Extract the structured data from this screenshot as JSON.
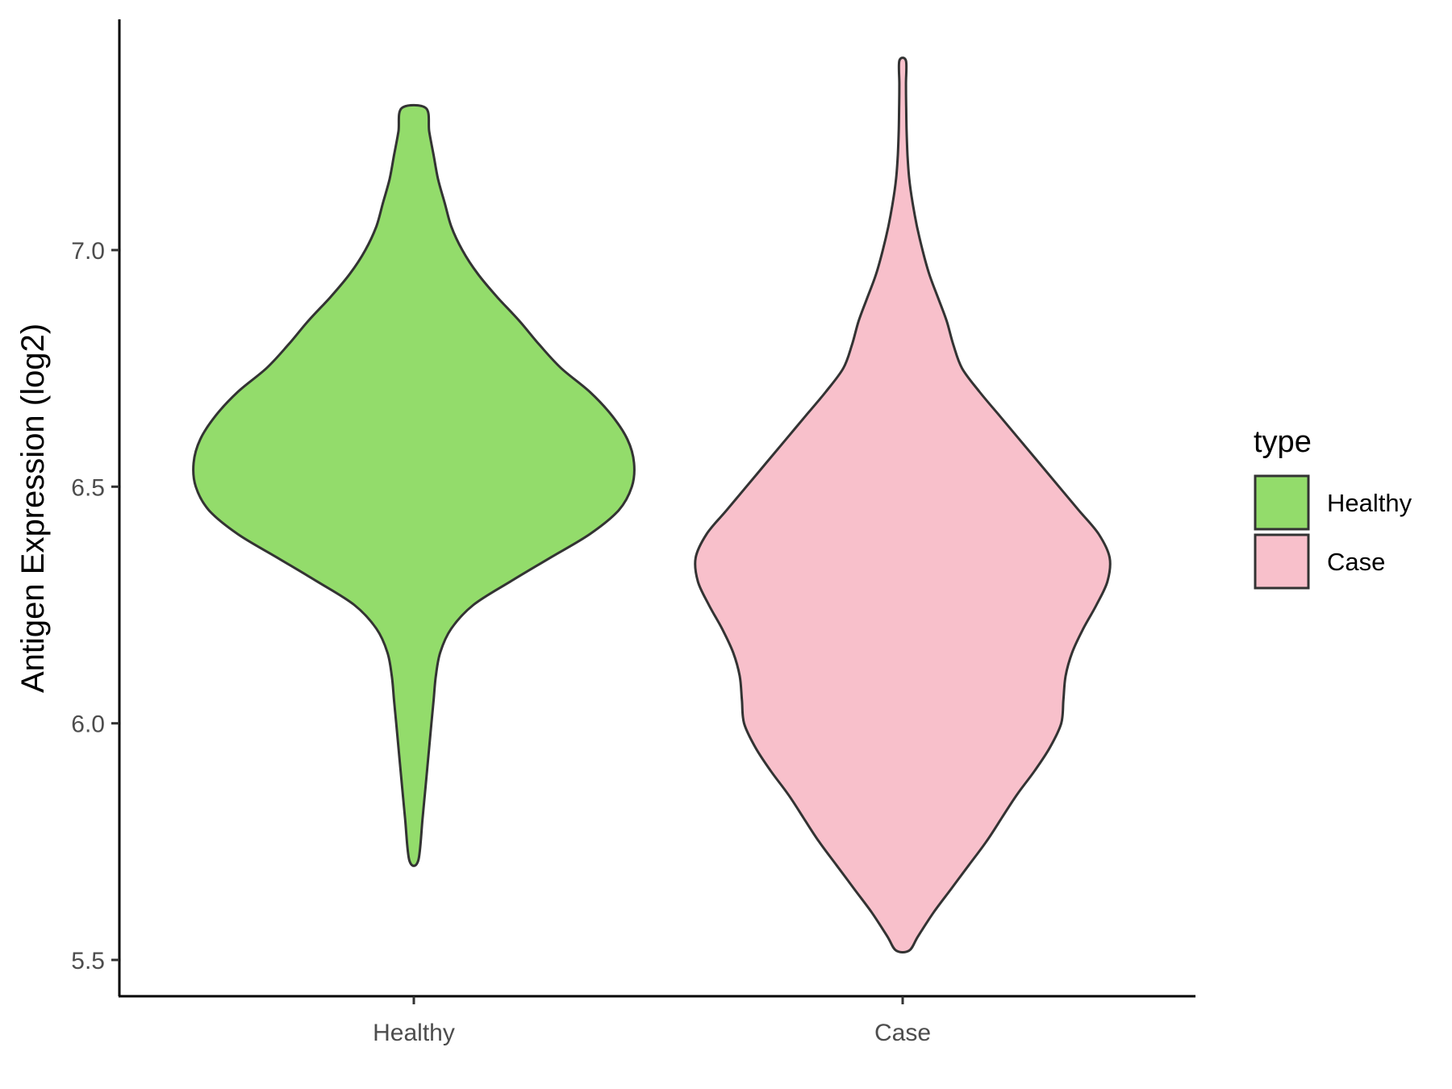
{
  "chart_data": {
    "type": "violin",
    "title": "",
    "xlabel": "",
    "ylabel": "Antigen Expression (log2)",
    "categories": [
      "Healthy",
      "Case"
    ],
    "ylim": [
      5.47,
      7.5
    ],
    "yticks": [
      5.5,
      6.0,
      6.5,
      7.0
    ],
    "ytick_labels": [
      "5.5",
      "6.0",
      "6.5",
      "7.0"
    ],
    "grid": false,
    "legend": {
      "title": "type",
      "position": "right",
      "entries": [
        "Healthy",
        "Case"
      ]
    },
    "series": [
      {
        "category": "Healthy",
        "color": "#93DC6B",
        "y_min": 5.71,
        "y_max": 7.3,
        "density_profile": [
          [
            5.71,
            0.02
          ],
          [
            5.8,
            0.04
          ],
          [
            5.9,
            0.06
          ],
          [
            6.0,
            0.08
          ],
          [
            6.05,
            0.09
          ],
          [
            6.1,
            0.1
          ],
          [
            6.15,
            0.12
          ],
          [
            6.2,
            0.17
          ],
          [
            6.25,
            0.27
          ],
          [
            6.3,
            0.44
          ],
          [
            6.35,
            0.62
          ],
          [
            6.4,
            0.8
          ],
          [
            6.45,
            0.93
          ],
          [
            6.5,
            0.99
          ],
          [
            6.55,
            1.0
          ],
          [
            6.6,
            0.97
          ],
          [
            6.65,
            0.9
          ],
          [
            6.7,
            0.8
          ],
          [
            6.75,
            0.67
          ],
          [
            6.8,
            0.57
          ],
          [
            6.85,
            0.48
          ],
          [
            6.9,
            0.38
          ],
          [
            6.95,
            0.29
          ],
          [
            7.0,
            0.22
          ],
          [
            7.05,
            0.17
          ],
          [
            7.1,
            0.14
          ],
          [
            7.15,
            0.11
          ],
          [
            7.2,
            0.09
          ],
          [
            7.25,
            0.07
          ],
          [
            7.3,
            0.055
          ]
        ]
      },
      {
        "category": "Case",
        "color": "#F8C0CB",
        "y_min": 5.52,
        "y_max": 7.4,
        "density_profile": [
          [
            5.52,
            0.03
          ],
          [
            5.55,
            0.07
          ],
          [
            5.6,
            0.14
          ],
          [
            5.65,
            0.22
          ],
          [
            5.7,
            0.3
          ],
          [
            5.75,
            0.38
          ],
          [
            5.8,
            0.45
          ],
          [
            5.85,
            0.52
          ],
          [
            5.9,
            0.6
          ],
          [
            5.95,
            0.67
          ],
          [
            6.0,
            0.72
          ],
          [
            6.05,
            0.73
          ],
          [
            6.1,
            0.74
          ],
          [
            6.15,
            0.77
          ],
          [
            6.2,
            0.82
          ],
          [
            6.25,
            0.88
          ],
          [
            6.3,
            0.93
          ],
          [
            6.35,
            0.94
          ],
          [
            6.4,
            0.89
          ],
          [
            6.45,
            0.8
          ],
          [
            6.5,
            0.71
          ],
          [
            6.55,
            0.62
          ],
          [
            6.6,
            0.53
          ],
          [
            6.65,
            0.44
          ],
          [
            6.7,
            0.35
          ],
          [
            6.75,
            0.27
          ],
          [
            6.8,
            0.23
          ],
          [
            6.85,
            0.2
          ],
          [
            6.9,
            0.16
          ],
          [
            6.95,
            0.12
          ],
          [
            7.0,
            0.09
          ],
          [
            7.05,
            0.065
          ],
          [
            7.1,
            0.045
          ],
          [
            7.15,
            0.03
          ],
          [
            7.2,
            0.022
          ],
          [
            7.25,
            0.018
          ],
          [
            7.3,
            0.016
          ],
          [
            7.35,
            0.015
          ],
          [
            7.4,
            0.015
          ]
        ]
      }
    ]
  }
}
